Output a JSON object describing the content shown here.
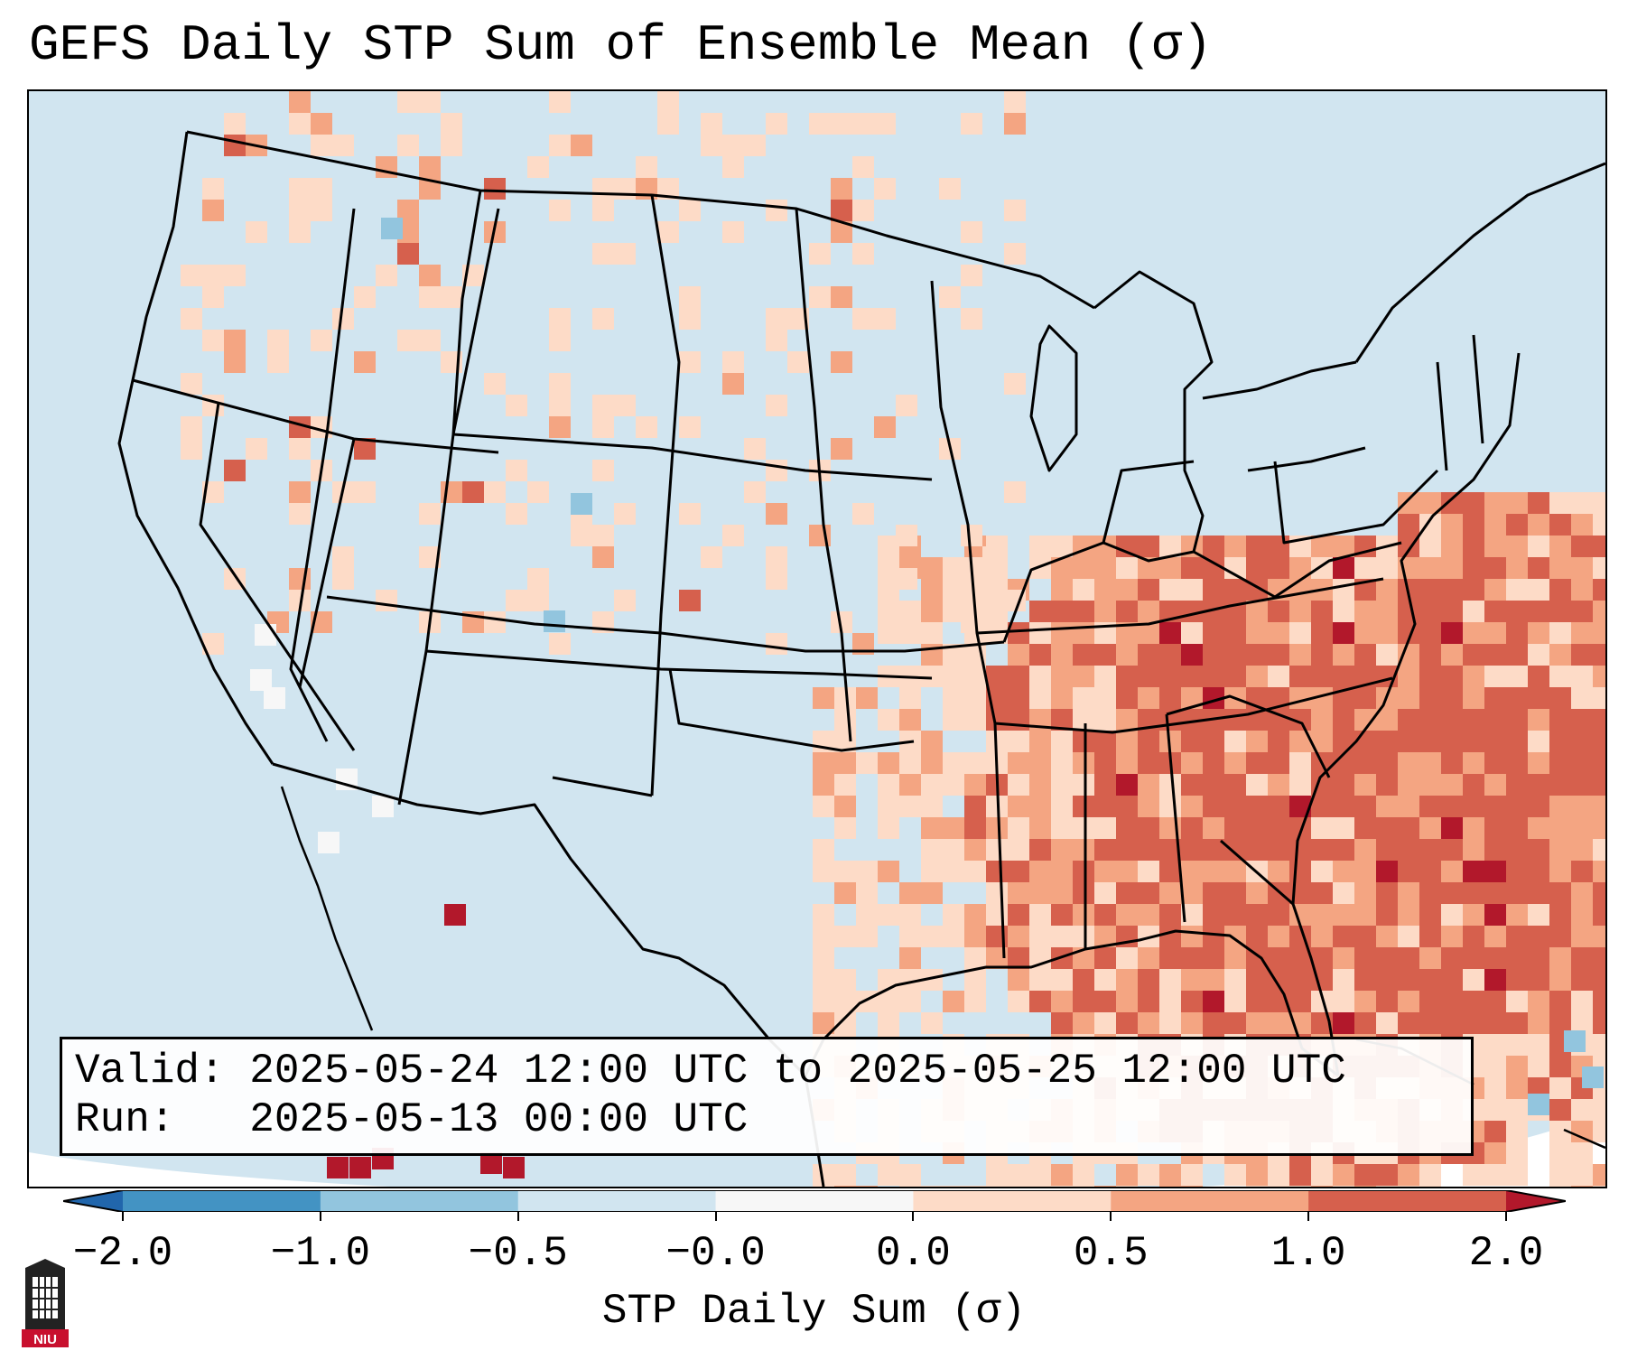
{
  "title": "GEFS Daily STP Sum of Ensemble Mean (σ)",
  "info": {
    "valid_label": "Valid:",
    "valid_value": "2025-05-24 12:00 UTC to 2025-05-25 12:00 UTC",
    "run_label": "Run:",
    "run_value": "2025-05-13 00:00 UTC"
  },
  "colorbar": {
    "label": "STP Daily Sum (σ)",
    "ticks": [
      "−2.0",
      "−1.0",
      "−0.5",
      "−0.0",
      "0.0",
      "0.5",
      "1.0",
      "2.0"
    ],
    "bins": [
      {
        "range": "< -2.0",
        "color": "#2166ac"
      },
      {
        "range": "-2.0 to -1.0",
        "color": "#4393c3"
      },
      {
        "range": "-1.0 to -0.5",
        "color": "#92c5de"
      },
      {
        "range": "-0.5 to 0.0",
        "color": "#d1e5f0"
      },
      {
        "range": "0.0 (neutral)",
        "color": "#f7f7f7"
      },
      {
        "range": "0.0 to 0.5",
        "color": "#fddbc7"
      },
      {
        "range": "0.5 to 1.0",
        "color": "#f4a582"
      },
      {
        "range": "1.0 to 2.0",
        "color": "#d6604d"
      },
      {
        "range": "> 2.0",
        "color": "#b2182b"
      }
    ]
  },
  "map_background_color": "#d1e5f0",
  "logo": {
    "text": "NIU",
    "icon": "niu-logo-icon"
  }
}
